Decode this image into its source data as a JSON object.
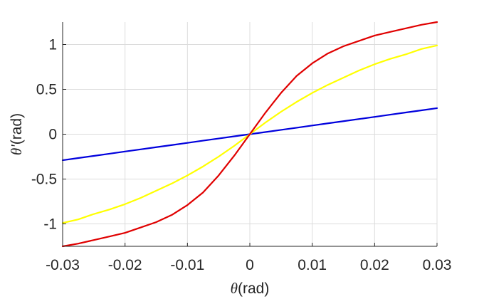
{
  "chart_data": {
    "type": "line",
    "title": "",
    "xlabel": {
      "symbol": "θ",
      "unit": "(rad)"
    },
    "ylabel": {
      "symbol": "θ'",
      "unit": "(rad)"
    },
    "xlim": [
      -0.03,
      0.03
    ],
    "ylim": [
      -1.25,
      1.25
    ],
    "xticks": [
      -0.03,
      -0.02,
      -0.01,
      0,
      0.01,
      0.02,
      0.03
    ],
    "xtick_labels": [
      "-0.03",
      "-0.02",
      "-0.01",
      "0",
      "0.01",
      "0.02",
      "0.03"
    ],
    "yticks": [
      -1,
      -0.5,
      0,
      0.5,
      1
    ],
    "ytick_labels": [
      "-1",
      "-0.5",
      "0",
      "0.5",
      "1"
    ],
    "grid": true,
    "x": [
      -0.03,
      -0.0275,
      -0.025,
      -0.0225,
      -0.02,
      -0.0175,
      -0.015,
      -0.0125,
      -0.01,
      -0.0075,
      -0.005,
      -0.0025,
      0,
      0.0025,
      0.005,
      0.0075,
      0.01,
      0.0125,
      0.015,
      0.0175,
      0.02,
      0.0225,
      0.025,
      0.0275,
      0.03
    ],
    "series": [
      {
        "color": "#0000dd",
        "values": [
          -0.29,
          -0.266,
          -0.242,
          -0.218,
          -0.193,
          -0.169,
          -0.145,
          -0.121,
          -0.097,
          -0.072,
          -0.048,
          -0.024,
          0,
          0.024,
          0.048,
          0.072,
          0.097,
          0.121,
          0.145,
          0.169,
          0.193,
          0.218,
          0.242,
          0.266,
          0.29
        ]
      },
      {
        "color": "#ffff00",
        "values": [
          -0.99,
          -0.95,
          -0.89,
          -0.84,
          -0.78,
          -0.71,
          -0.63,
          -0.55,
          -0.46,
          -0.36,
          -0.25,
          -0.13,
          0,
          0.13,
          0.25,
          0.36,
          0.46,
          0.55,
          0.63,
          0.71,
          0.78,
          0.84,
          0.89,
          0.95,
          0.99
        ]
      },
      {
        "color": "#e00000",
        "values": [
          -1.25,
          -1.22,
          -1.18,
          -1.14,
          -1.1,
          -1.04,
          -0.98,
          -0.9,
          -0.79,
          -0.65,
          -0.46,
          -0.24,
          0,
          0.24,
          0.46,
          0.65,
          0.79,
          0.9,
          0.98,
          1.04,
          1.1,
          1.14,
          1.18,
          1.22,
          1.25
        ]
      }
    ]
  }
}
